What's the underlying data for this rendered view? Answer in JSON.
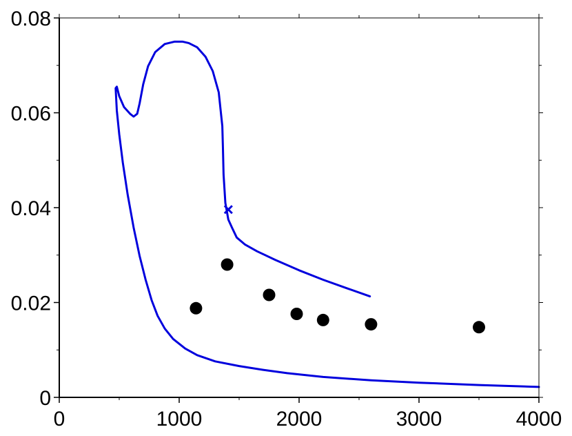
{
  "colors": {
    "curve": "#0000dd",
    "points": "#000000",
    "axis": "#000000",
    "background": "#ffffff"
  },
  "chart_data": {
    "type": "scatter",
    "title": "",
    "xlabel": "",
    "ylabel": "",
    "xlim": [
      0,
      4000
    ],
    "ylim": [
      0,
      0.08
    ],
    "grid": false,
    "x_ticks": [
      {
        "value": 0,
        "label": "0"
      },
      {
        "value": 1000,
        "label": "1000"
      },
      {
        "value": 2000,
        "label": "2000"
      },
      {
        "value": 3000,
        "label": "3000"
      },
      {
        "value": 4000,
        "label": "4000"
      }
    ],
    "y_ticks": [
      {
        "value": 0,
        "label": "0"
      },
      {
        "value": 0.02,
        "label": "0.02"
      },
      {
        "value": 0.04,
        "label": "0.04"
      },
      {
        "value": 0.06,
        "label": "0.06"
      },
      {
        "value": 0.08,
        "label": "0.08"
      }
    ],
    "x_minor_ticks": [
      500,
      1500,
      2500,
      3500
    ],
    "y_minor_ticks": [
      0.01,
      0.03,
      0.05,
      0.07
    ],
    "series": [
      {
        "type": "line",
        "points": [
          [
            4000,
            0.0022
          ],
          [
            3500,
            0.0026
          ],
          [
            3000,
            0.0031
          ],
          [
            2600,
            0.0036
          ],
          [
            2200,
            0.0043
          ],
          [
            1900,
            0.0051
          ],
          [
            1700,
            0.0058
          ],
          [
            1500,
            0.0066
          ],
          [
            1300,
            0.0076
          ],
          [
            1150,
            0.0089
          ],
          [
            1050,
            0.0103
          ],
          [
            950,
            0.0123
          ],
          [
            880,
            0.0145
          ],
          [
            820,
            0.0172
          ],
          [
            770,
            0.0205
          ],
          [
            720,
            0.0248
          ],
          [
            670,
            0.0298
          ],
          [
            620,
            0.0358
          ],
          [
            570,
            0.0428
          ],
          [
            530,
            0.0495
          ],
          [
            500,
            0.0555
          ],
          [
            480,
            0.0605
          ],
          [
            470,
            0.0652
          ],
          [
            480,
            0.0655
          ],
          [
            500,
            0.0635
          ],
          [
            540,
            0.0612
          ],
          [
            590,
            0.0598
          ],
          [
            620,
            0.0592
          ],
          [
            650,
            0.0598
          ],
          [
            670,
            0.062
          ],
          [
            700,
            0.066
          ],
          [
            740,
            0.0698
          ],
          [
            800,
            0.0728
          ],
          [
            880,
            0.0745
          ],
          [
            960,
            0.075
          ],
          [
            1030,
            0.075
          ],
          [
            1080,
            0.0747
          ],
          [
            1150,
            0.0738
          ],
          [
            1220,
            0.0718
          ],
          [
            1280,
            0.0688
          ],
          [
            1330,
            0.0643
          ],
          [
            1360,
            0.0572
          ],
          [
            1365,
            0.0525
          ],
          [
            1370,
            0.047
          ],
          [
            1385,
            0.041
          ],
          [
            1410,
            0.0375
          ],
          [
            1440,
            0.0358
          ],
          [
            1480,
            0.0337
          ],
          [
            1550,
            0.0322
          ],
          [
            1650,
            0.0308
          ],
          [
            1800,
            0.029
          ],
          [
            2000,
            0.0268
          ],
          [
            2200,
            0.0248
          ],
          [
            2400,
            0.023
          ],
          [
            2590,
            0.0213
          ]
        ]
      },
      {
        "type": "marker",
        "marker": "x",
        "points": [
          [
            1410,
            0.0396
          ]
        ]
      },
      {
        "type": "scatter",
        "marker": "circle",
        "points": [
          [
            1140,
            0.0188
          ],
          [
            1400,
            0.028
          ],
          [
            1750,
            0.0216
          ],
          [
            1980,
            0.0176
          ],
          [
            2200,
            0.0163
          ],
          [
            2600,
            0.0154
          ],
          [
            3500,
            0.0148
          ]
        ]
      }
    ]
  }
}
